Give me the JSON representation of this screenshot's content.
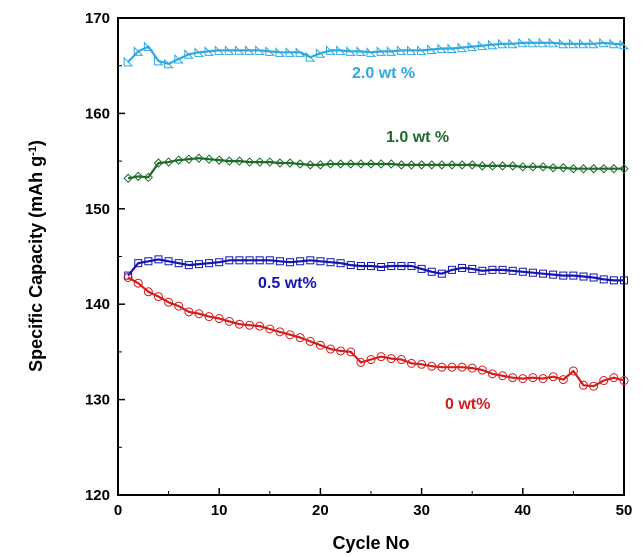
{
  "chart_data": {
    "type": "line",
    "xlabel": "Cycle No",
    "ylabel": "Specific Capacity (mAh g",
    "ylabel_sup": "-1",
    "ylabel_end": ")",
    "xlim": [
      0,
      50
    ],
    "ylim": [
      120,
      170
    ],
    "x_ticks": [
      "0",
      "10",
      "20",
      "30",
      "40",
      "50"
    ],
    "y_ticks": [
      "120",
      "130",
      "140",
      "150",
      "160",
      "170"
    ],
    "grid": false,
    "legend": "inline labels",
    "series": [
      {
        "name": "2.0 wt %",
        "color": "#2EA9DF",
        "marker": "triangle",
        "x": [
          1,
          2,
          3,
          4,
          5,
          6,
          7,
          8,
          9,
          10,
          11,
          12,
          13,
          14,
          15,
          16,
          17,
          18,
          19,
          20,
          21,
          22,
          23,
          24,
          25,
          26,
          27,
          28,
          29,
          30,
          31,
          32,
          33,
          34,
          35,
          36,
          37,
          38,
          39,
          40,
          41,
          42,
          43,
          44,
          45,
          46,
          47,
          48,
          49,
          50
        ],
        "y": [
          165.4,
          166.5,
          167.0,
          165.5,
          165.2,
          165.7,
          166.2,
          166.4,
          166.5,
          166.6,
          166.6,
          166.6,
          166.6,
          166.6,
          166.5,
          166.4,
          166.4,
          166.4,
          165.9,
          166.3,
          166.6,
          166.6,
          166.5,
          166.5,
          166.4,
          166.5,
          166.5,
          166.6,
          166.6,
          166.6,
          166.7,
          166.8,
          166.8,
          166.9,
          167.0,
          167.1,
          167.2,
          167.3,
          167.3,
          167.4,
          167.4,
          167.4,
          167.4,
          167.3,
          167.3,
          167.3,
          167.3,
          167.4,
          167.3,
          167.2
        ]
      },
      {
        "name": "1.0 wt %",
        "color": "#1E6B2A",
        "marker": "diamond",
        "x": [
          1,
          2,
          3,
          4,
          5,
          6,
          7,
          8,
          9,
          10,
          11,
          12,
          13,
          14,
          15,
          16,
          17,
          18,
          19,
          20,
          21,
          22,
          23,
          24,
          25,
          26,
          27,
          28,
          29,
          30,
          31,
          32,
          33,
          34,
          35,
          36,
          37,
          38,
          39,
          40,
          41,
          42,
          43,
          44,
          45,
          46,
          47,
          48,
          49,
          50
        ],
        "y": [
          153.2,
          153.4,
          153.3,
          154.8,
          154.9,
          155.1,
          155.2,
          155.3,
          155.2,
          155.1,
          155.0,
          155.0,
          154.9,
          154.9,
          154.9,
          154.8,
          154.8,
          154.7,
          154.6,
          154.6,
          154.7,
          154.7,
          154.7,
          154.7,
          154.7,
          154.7,
          154.7,
          154.6,
          154.6,
          154.6,
          154.6,
          154.6,
          154.6,
          154.6,
          154.6,
          154.5,
          154.5,
          154.5,
          154.5,
          154.4,
          154.4,
          154.4,
          154.3,
          154.3,
          154.2,
          154.2,
          154.2,
          154.2,
          154.2,
          154.2
        ]
      },
      {
        "name": "0.5 wt%",
        "color": "#1414B0",
        "marker": "square",
        "x": [
          1,
          2,
          3,
          4,
          5,
          6,
          7,
          8,
          9,
          10,
          11,
          12,
          13,
          14,
          15,
          16,
          17,
          18,
          19,
          20,
          21,
          22,
          23,
          24,
          25,
          26,
          27,
          28,
          29,
          30,
          31,
          32,
          33,
          34,
          35,
          36,
          37,
          38,
          39,
          40,
          41,
          42,
          43,
          44,
          45,
          46,
          47,
          48,
          49,
          50
        ],
        "y": [
          143.0,
          144.3,
          144.5,
          144.7,
          144.5,
          144.3,
          144.1,
          144.2,
          144.3,
          144.4,
          144.6,
          144.6,
          144.6,
          144.6,
          144.6,
          144.5,
          144.4,
          144.5,
          144.6,
          144.5,
          144.4,
          144.3,
          144.1,
          144.0,
          144.0,
          143.9,
          144.0,
          144.0,
          144.0,
          143.7,
          143.4,
          143.2,
          143.6,
          143.8,
          143.7,
          143.5,
          143.6,
          143.6,
          143.5,
          143.4,
          143.3,
          143.2,
          143.1,
          143.0,
          143.0,
          142.9,
          142.8,
          142.6,
          142.5,
          142.5
        ]
      },
      {
        "name": "0 wt%",
        "color": "#D21E1E",
        "marker": "circle",
        "x": [
          1,
          2,
          3,
          4,
          5,
          6,
          7,
          8,
          9,
          10,
          11,
          12,
          13,
          14,
          15,
          16,
          17,
          18,
          19,
          20,
          21,
          22,
          23,
          24,
          25,
          26,
          27,
          28,
          29,
          30,
          31,
          32,
          33,
          34,
          35,
          36,
          37,
          38,
          39,
          40,
          41,
          42,
          43,
          44,
          45,
          46,
          47,
          48,
          49,
          50
        ],
        "y": [
          142.8,
          142.2,
          141.3,
          140.8,
          140.2,
          139.8,
          139.2,
          139.0,
          138.7,
          138.5,
          138.2,
          137.9,
          137.8,
          137.7,
          137.4,
          137.1,
          136.8,
          136.5,
          136.1,
          135.7,
          135.3,
          135.1,
          135.0,
          133.9,
          134.2,
          134.5,
          134.3,
          134.2,
          133.8,
          133.7,
          133.5,
          133.4,
          133.4,
          133.4,
          133.3,
          133.1,
          132.7,
          132.5,
          132.3,
          132.2,
          132.3,
          132.2,
          132.4,
          132.1,
          133.0,
          131.5,
          131.4,
          132.0,
          132.3,
          132.0
        ]
      }
    ]
  }
}
